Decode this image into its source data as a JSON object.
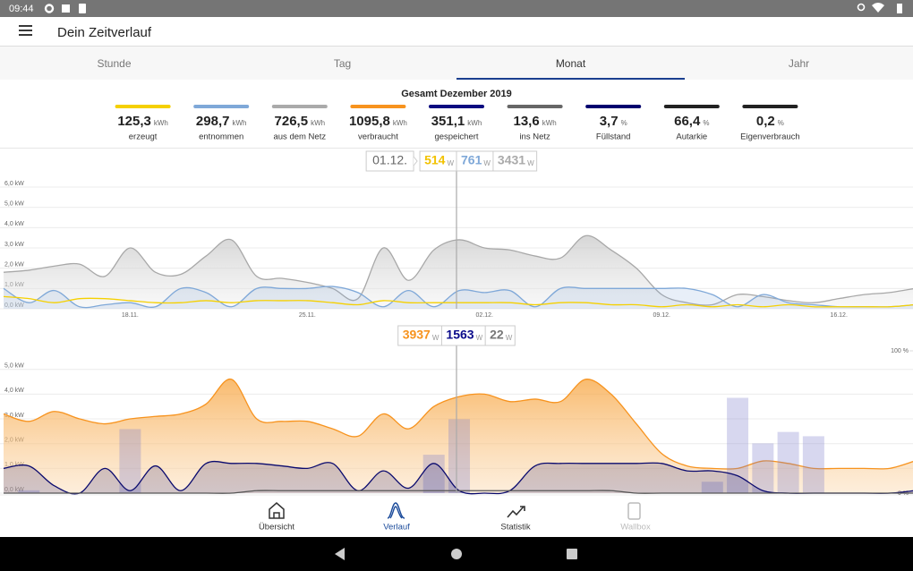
{
  "status_bar": {
    "time": "09:44"
  },
  "app_bar": {
    "title": "Dein Zeitverlauf"
  },
  "tabs": {
    "items": [
      "Stunde",
      "Tag",
      "Monat",
      "Jahr"
    ],
    "active": 2
  },
  "summary": {
    "title": "Gesamt Dezember 2019",
    "items": [
      {
        "value": "125,3",
        "unit": "kWh",
        "label": "erzeugt",
        "color": "#f5d000"
      },
      {
        "value": "298,7",
        "unit": "kWh",
        "label": "entnommen",
        "color": "#7fa8d8"
      },
      {
        "value": "726,5",
        "unit": "kWh",
        "label": "aus dem Netz",
        "color": "#aaaaaa"
      },
      {
        "value": "1095,8",
        "unit": "kWh",
        "label": "verbraucht",
        "color": "#f7931e"
      },
      {
        "value": "351,1",
        "unit": "kWh",
        "label": "gespeichert",
        "color": "#0a0a80"
      },
      {
        "value": "13,6",
        "unit": "kWh",
        "label": "ins Netz",
        "color": "#666666"
      },
      {
        "value": "3,7",
        "unit": "%",
        "label": "Füllstand",
        "color": "#00006e"
      },
      {
        "value": "66,4",
        "unit": "%",
        "label": "Autarkie",
        "color": "#222222"
      },
      {
        "value": "0,2",
        "unit": "%",
        "label": "Eigenverbrauch",
        "color": "#222222"
      }
    ]
  },
  "chart_data": [
    {
      "type": "area",
      "tooltip": {
        "date": "01.12.",
        "items": [
          {
            "value": 514,
            "unit": "W",
            "color": "#f2c200"
          },
          {
            "value": 761,
            "unit": "W",
            "color": "#7fa8d8"
          },
          {
            "value": 3431,
            "unit": "W",
            "color": "#aaaaaa"
          }
        ]
      },
      "categories": [
        null,
        null,
        null,
        null,
        null,
        "18.11.",
        null,
        null,
        null,
        null,
        null,
        null,
        "25.11.",
        null,
        null,
        null,
        null,
        null,
        null,
        "02.12.",
        null,
        null,
        null,
        null,
        null,
        null,
        "09.12.",
        null,
        null,
        null,
        null,
        null,
        null,
        "16.12.",
        null,
        null,
        null
      ],
      "ylim": [
        0,
        6
      ],
      "yticks": [
        {
          "value": 0,
          "label": "0,0 kW"
        },
        {
          "value": 1,
          "label": "1,0 kW"
        },
        {
          "value": 2,
          "label": "2,0 kW"
        },
        {
          "value": 3,
          "label": "3,0 kW"
        },
        {
          "value": 4,
          "label": "4,0 kW"
        },
        {
          "value": 5,
          "label": "5,0 kW"
        },
        {
          "value": 6,
          "label": "6,0 kW"
        }
      ],
      "grid": true,
      "series": [
        {
          "color": "#a8a8a8",
          "area": true,
          "values": [
            1.8,
            1.9,
            2.1,
            2.2,
            1.6,
            3.0,
            1.8,
            1.7,
            2.6,
            3.4,
            1.6,
            1.5,
            1.3,
            1.0,
            0.5,
            3.0,
            1.4,
            2.9,
            3.4,
            3.0,
            2.9,
            2.6,
            2.5,
            3.6,
            2.9,
            2.0,
            0.7,
            0.3,
            0.2,
            0.7,
            0.6,
            0.4,
            0.3,
            0.5,
            0.7,
            0.8,
            1.0
          ]
        },
        {
          "color": "#7fa8d8",
          "area": true,
          "values": [
            1.0,
            0.3,
            0.9,
            0.1,
            0.2,
            0.3,
            0.1,
            1.0,
            0.8,
            0.1,
            1.0,
            1.0,
            1.0,
            1.1,
            0.8,
            0.1,
            0.9,
            0.1,
            0.9,
            0.8,
            0.9,
            0.1,
            1.0,
            1.0,
            1.0,
            1.0,
            1.0,
            1.0,
            0.7,
            0.1,
            0.7,
            0.3,
            0.2,
            0.1,
            0.1,
            0.1,
            0.2
          ]
        },
        {
          "color": "#f5d000",
          "values": [
            0.6,
            0.5,
            0.3,
            0.5,
            0.5,
            0.4,
            0.3,
            0.3,
            0.4,
            0.3,
            0.4,
            0.4,
            0.4,
            0.3,
            0.2,
            0.4,
            0.3,
            0.3,
            0.3,
            0.3,
            0.3,
            0.2,
            0.3,
            0.3,
            0.2,
            0.2,
            0.1,
            0.2,
            0.1,
            0.2,
            0.1,
            0.2,
            0.1,
            0.1,
            0.1,
            0.1,
            0.2
          ]
        }
      ]
    },
    {
      "type": "area",
      "tooltip": {
        "items": [
          {
            "value": 3937,
            "unit": "W",
            "color": "#f7931e"
          },
          {
            "value": 1563,
            "unit": "W",
            "color": "#0a0a8a"
          },
          {
            "value": 22,
            "unit": "W",
            "color": "#777777"
          }
        ]
      },
      "categories": [
        null,
        null,
        null,
        null,
        null,
        null,
        null,
        null,
        null,
        null,
        null,
        null,
        null,
        null,
        null,
        null,
        null,
        null,
        null,
        null,
        null,
        null,
        null,
        null,
        null,
        null,
        null,
        null,
        null,
        null,
        null,
        null,
        null,
        null,
        null,
        null,
        null
      ],
      "ylim": [
        0,
        5.75
      ],
      "yticks": [
        {
          "value": 0,
          "label": "0,0 kW"
        },
        {
          "value": 1,
          "label": "1,0 kW"
        },
        {
          "value": 2,
          "label": "2,0 kW"
        },
        {
          "value": 3,
          "label": "3,0 kW"
        },
        {
          "value": 4,
          "label": "4,0 kW"
        },
        {
          "value": 5,
          "label": "5,0 kW"
        }
      ],
      "y2lim": [
        0,
        100
      ],
      "y2ticks": [
        {
          "value": 100,
          "label": "100 %"
        },
        {
          "value": 0,
          "label": "0 %"
        }
      ],
      "grid": true,
      "series": [
        {
          "color": "#f7931e",
          "area": true,
          "values": [
            3.2,
            2.9,
            3.3,
            3.0,
            2.8,
            3.0,
            3.1,
            3.2,
            3.6,
            4.6,
            3.0,
            2.9,
            2.9,
            2.6,
            2.3,
            3.2,
            2.6,
            3.5,
            3.9,
            4.0,
            3.7,
            3.8,
            3.7,
            4.6,
            4.0,
            2.8,
            1.6,
            1.1,
            1.0,
            1.0,
            1.3,
            1.2,
            1.0,
            1.0,
            1.0,
            1.0,
            1.3
          ]
        },
        {
          "type": "bar",
          "axis": "y2",
          "color": "#7b7bc9",
          "values": [
            0,
            2,
            0,
            0,
            0,
            45,
            0,
            0,
            0,
            0,
            0,
            0,
            0,
            0,
            0,
            0,
            0,
            27,
            52,
            0,
            0,
            0,
            0,
            0,
            0,
            0,
            0,
            0,
            8,
            67,
            35,
            43,
            40,
            0,
            0,
            0,
            0
          ]
        },
        {
          "color": "#0a0a6e",
          "area": true,
          "values": [
            1.0,
            1.1,
            0.3,
            0.0,
            1.0,
            0.1,
            1.1,
            0.1,
            1.2,
            1.2,
            1.2,
            1.1,
            1.0,
            1.2,
            0.1,
            0.9,
            0.2,
            1.2,
            0.1,
            0.0,
            0.1,
            1.1,
            1.2,
            1.2,
            1.2,
            1.2,
            1.2,
            0.9,
            0.9,
            0.7,
            0.1,
            0.0,
            0.0,
            0.0,
            0.0,
            0.0,
            0.1
          ]
        },
        {
          "color": "#555555",
          "values": [
            0,
            0,
            0,
            0,
            0,
            0,
            0,
            0,
            0,
            0,
            0.1,
            0.1,
            0.1,
            0.1,
            0.1,
            0.1,
            0.1,
            0.1,
            0.1,
            0.1,
            0.1,
            0.1,
            0.1,
            0.1,
            0.1,
            0,
            0,
            0,
            0,
            0,
            0,
            0,
            0,
            0,
            0,
            0,
            0
          ]
        }
      ]
    }
  ],
  "bottom_nav": {
    "items": [
      {
        "label": "Übersicht"
      },
      {
        "label": "Verlauf"
      },
      {
        "label": "Statistik"
      },
      {
        "label": "Wallbox",
        "enabled": false
      }
    ],
    "active": 1
  }
}
